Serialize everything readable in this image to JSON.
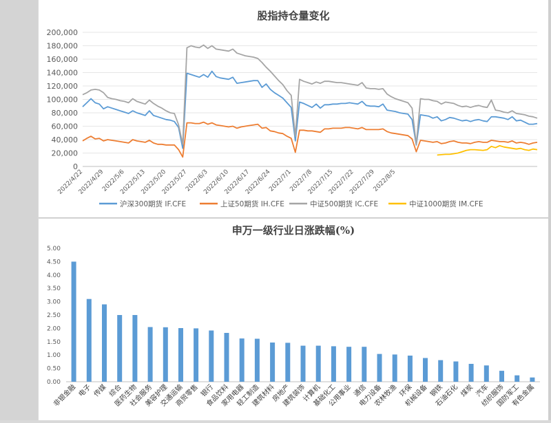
{
  "chart_data": [
    {
      "type": "line",
      "title": "股指持仓量变化",
      "ylim": [
        0,
        200000
      ],
      "yticks": [
        "0",
        "20,000",
        "40,000",
        "60,000",
        "80,000",
        "100,000",
        "120,000",
        "140,000",
        "160,000",
        "180,000",
        "200,000"
      ],
      "xticks": [
        "2022/4/22",
        "2022/4/29",
        "2022/5/6",
        "2022/5/13",
        "2022/5/20",
        "2022/5/27",
        "2022/6/3",
        "2022/6/10",
        "2022/6/17",
        "2022/6/24",
        "2022/7/1",
        "2022/7/8",
        "2022/7/15",
        "2022/7/22",
        "2022/7/29",
        "2022/8/5"
      ],
      "legend_position": "bottom",
      "series": [
        {
          "name": "沪深300期货 IF.CFE",
          "color": "#5b9bd5",
          "x_index": [
            0,
            1,
            2,
            3,
            4,
            5,
            6,
            7,
            8,
            9,
            10,
            11,
            12,
            13,
            14,
            15,
            16,
            17,
            18,
            19,
            20,
            21,
            22,
            23,
            24,
            25,
            26,
            27,
            28,
            29,
            30,
            31,
            32,
            33,
            34,
            35,
            36,
            37,
            38,
            39,
            40,
            41,
            42,
            43,
            44,
            45,
            46,
            47,
            48,
            49,
            50,
            51,
            52,
            53,
            54,
            55,
            56,
            57,
            58,
            59,
            60,
            61,
            62,
            63,
            64,
            65,
            66,
            67,
            68,
            69,
            70,
            71,
            72,
            73,
            74,
            75,
            76,
            77,
            78,
            79,
            80,
            81,
            82,
            83,
            84,
            85,
            86,
            87,
            88,
            89,
            90,
            91,
            92,
            93,
            94,
            95,
            96,
            97,
            98,
            99,
            100,
            101,
            102,
            103,
            104,
            105,
            106,
            107,
            108,
            109
          ],
          "values": [
            89000,
            95000,
            101000,
            95000,
            93000,
            86000,
            89000,
            87000,
            85000,
            83000,
            81000,
            79000,
            83000,
            80000,
            78000,
            76000,
            83000,
            76000,
            74000,
            72000,
            70000,
            69000,
            67000,
            58000,
            27000,
            139000,
            137000,
            135000,
            133000,
            137000,
            133000,
            142000,
            134000,
            132000,
            131000,
            130000,
            133000,
            124000,
            125000,
            126000,
            127000,
            128000,
            128000,
            118000,
            123000,
            115000,
            110000,
            106000,
            102000,
            95000,
            88000,
            38000,
            96000,
            94000,
            91000,
            88000,
            93000,
            87000,
            92000,
            92000,
            93000,
            93000,
            94000,
            94000,
            95000,
            94000,
            93000,
            97000,
            91000,
            90000,
            90000,
            89000,
            93000,
            84000,
            83000,
            82000,
            80000,
            79000,
            78000,
            70000,
            32000,
            77000,
            76000,
            75000,
            72000,
            74000,
            68000,
            70000,
            73000,
            72000,
            70000,
            68000,
            69000,
            67000,
            69000,
            70000,
            68000,
            67000,
            74000,
            74000,
            73000,
            72000,
            70000,
            74000,
            68000,
            69000,
            66000,
            63000,
            63000,
            64000
          ]
        },
        {
          "name": "上证50期货 IH.CFE",
          "color": "#ed7d31",
          "x_index": [
            0,
            1,
            2,
            3,
            4,
            5,
            6,
            7,
            8,
            9,
            10,
            11,
            12,
            13,
            14,
            15,
            16,
            17,
            18,
            19,
            20,
            21,
            22,
            23,
            24,
            25,
            26,
            27,
            28,
            29,
            30,
            31,
            32,
            33,
            34,
            35,
            36,
            37,
            38,
            39,
            40,
            41,
            42,
            43,
            44,
            45,
            46,
            47,
            48,
            49,
            50,
            51,
            52,
            53,
            54,
            55,
            56,
            57,
            58,
            59,
            60,
            61,
            62,
            63,
            64,
            65,
            66,
            67,
            68,
            69,
            70,
            71,
            72,
            73,
            74,
            75,
            76,
            77,
            78,
            79,
            80,
            81,
            82,
            83,
            84,
            85,
            86,
            87,
            88,
            89,
            90,
            91,
            92,
            93,
            94,
            95,
            96,
            97,
            98,
            99,
            100,
            101,
            102,
            103,
            104,
            105,
            106,
            107,
            108,
            109
          ],
          "values": [
            38000,
            42000,
            45000,
            41000,
            42000,
            38000,
            40000,
            39000,
            38000,
            37000,
            36000,
            35000,
            40000,
            38000,
            37000,
            36000,
            39000,
            35000,
            33000,
            33000,
            32000,
            32000,
            32000,
            25000,
            14000,
            65000,
            65000,
            64000,
            64000,
            66000,
            63000,
            65000,
            62000,
            61000,
            60000,
            59000,
            60000,
            57000,
            59000,
            60000,
            61000,
            62000,
            63000,
            57000,
            58000,
            53000,
            52000,
            50000,
            49000,
            45000,
            42000,
            21000,
            54000,
            54000,
            53000,
            53000,
            52000,
            51000,
            56000,
            56000,
            57000,
            57000,
            57000,
            58000,
            58000,
            57000,
            56000,
            58000,
            55000,
            55000,
            55000,
            55000,
            56000,
            52000,
            50000,
            49000,
            48000,
            47000,
            46000,
            41000,
            22000,
            39000,
            38000,
            37000,
            36000,
            37000,
            34000,
            35000,
            37000,
            38000,
            36000,
            35000,
            35000,
            34000,
            36000,
            37000,
            36000,
            36000,
            39000,
            38000,
            37000,
            37000,
            36000,
            38000,
            35000,
            36000,
            35000,
            33000,
            35000,
            36000
          ]
        },
        {
          "name": "中证500期货 IC.CFE",
          "color": "#a5a5a5",
          "x_index": [
            0,
            1,
            2,
            3,
            4,
            5,
            6,
            7,
            8,
            9,
            10,
            11,
            12,
            13,
            14,
            15,
            16,
            17,
            18,
            19,
            20,
            21,
            22,
            23,
            24,
            25,
            26,
            27,
            28,
            29,
            30,
            31,
            32,
            33,
            34,
            35,
            36,
            37,
            38,
            39,
            40,
            41,
            42,
            43,
            44,
            45,
            46,
            47,
            48,
            49,
            50,
            51,
            52,
            53,
            54,
            55,
            56,
            57,
            58,
            59,
            60,
            61,
            62,
            63,
            64,
            65,
            66,
            67,
            68,
            69,
            70,
            71,
            72,
            73,
            74,
            75,
            76,
            77,
            78,
            79,
            80,
            81,
            82,
            83,
            84,
            85,
            86,
            87,
            88,
            89,
            90,
            91,
            92,
            93,
            94,
            95,
            96,
            97,
            98,
            99,
            100,
            101,
            102,
            103,
            104,
            105,
            106,
            107,
            108,
            109
          ],
          "values": [
            107000,
            110000,
            114000,
            115000,
            114000,
            110000,
            103000,
            101000,
            100000,
            98000,
            97000,
            95000,
            101000,
            97000,
            95000,
            93000,
            99000,
            94000,
            90000,
            87000,
            83000,
            80000,
            79000,
            62000,
            33000,
            177000,
            180000,
            178000,
            177000,
            181000,
            176000,
            180000,
            175000,
            174000,
            173000,
            172000,
            175000,
            169000,
            167000,
            165000,
            164000,
            163000,
            161000,
            155000,
            148000,
            142000,
            135000,
            128000,
            122000,
            113000,
            106000,
            45000,
            130000,
            127000,
            125000,
            123000,
            126000,
            124000,
            127000,
            127000,
            126000,
            125000,
            125000,
            124000,
            123000,
            122000,
            121000,
            125000,
            117000,
            116000,
            116000,
            115000,
            116000,
            108000,
            104000,
            101000,
            99000,
            97000,
            95000,
            87000,
            33000,
            101000,
            100000,
            100000,
            98000,
            97000,
            93000,
            96000,
            95000,
            94000,
            91000,
            89000,
            90000,
            88000,
            90000,
            91000,
            89000,
            88000,
            99000,
            84000,
            83000,
            81000,
            80000,
            83000,
            79000,
            78000,
            77000,
            75000,
            74000,
            72000
          ]
        },
        {
          "name": "中证1000期货 IM.CFE",
          "color": "#ffc000",
          "x_index": [
            85,
            86,
            87,
            88,
            89,
            90,
            91,
            92,
            93,
            94,
            95,
            96,
            97,
            98,
            99,
            100,
            101,
            102,
            103,
            104,
            105,
            106,
            107,
            108,
            109
          ],
          "values": [
            17000,
            17500,
            18000,
            18000,
            19000,
            20000,
            22000,
            24000,
            25000,
            25000,
            24500,
            24000,
            25000,
            30000,
            28000,
            31000,
            29000,
            28000,
            27000,
            26000,
            27000,
            25000,
            24000,
            26000,
            25000
          ]
        }
      ]
    },
    {
      "type": "bar",
      "title": "申万一级行业日涨跌幅(%)",
      "ylim": [
        0,
        5
      ],
      "yticks": [
        "0.00",
        "0.50",
        "1.00",
        "1.50",
        "2.00",
        "2.50",
        "3.00",
        "3.50",
        "4.00",
        "4.50",
        "5.00"
      ],
      "color": "#5b9bd5",
      "categories": [
        "非银金融",
        "电子",
        "传媒",
        "综合",
        "医药生物",
        "社会服务",
        "美容护理",
        "交通运输",
        "商贸零售",
        "银行",
        "食品饮料",
        "家用电器",
        "轻工制造",
        "建筑材料",
        "房地产",
        "建筑装饰",
        "计算机",
        "基础化工",
        "公用事业",
        "通信",
        "电力设备",
        "农林牧渔",
        "环保",
        "机械设备",
        "钢铁",
        "石油石化",
        "煤炭",
        "汽车",
        "纺织服饰",
        "国防军工",
        "有色金属"
      ],
      "values": [
        4.5,
        3.1,
        2.9,
        2.5,
        2.5,
        2.05,
        2.04,
        2.01,
        2.0,
        1.92,
        1.83,
        1.62,
        1.61,
        1.47,
        1.46,
        1.35,
        1.35,
        1.33,
        1.31,
        1.31,
        1.04,
        1.02,
        0.98,
        0.89,
        0.81,
        0.76,
        0.67,
        0.61,
        0.41,
        0.24,
        0.16
      ]
    }
  ]
}
